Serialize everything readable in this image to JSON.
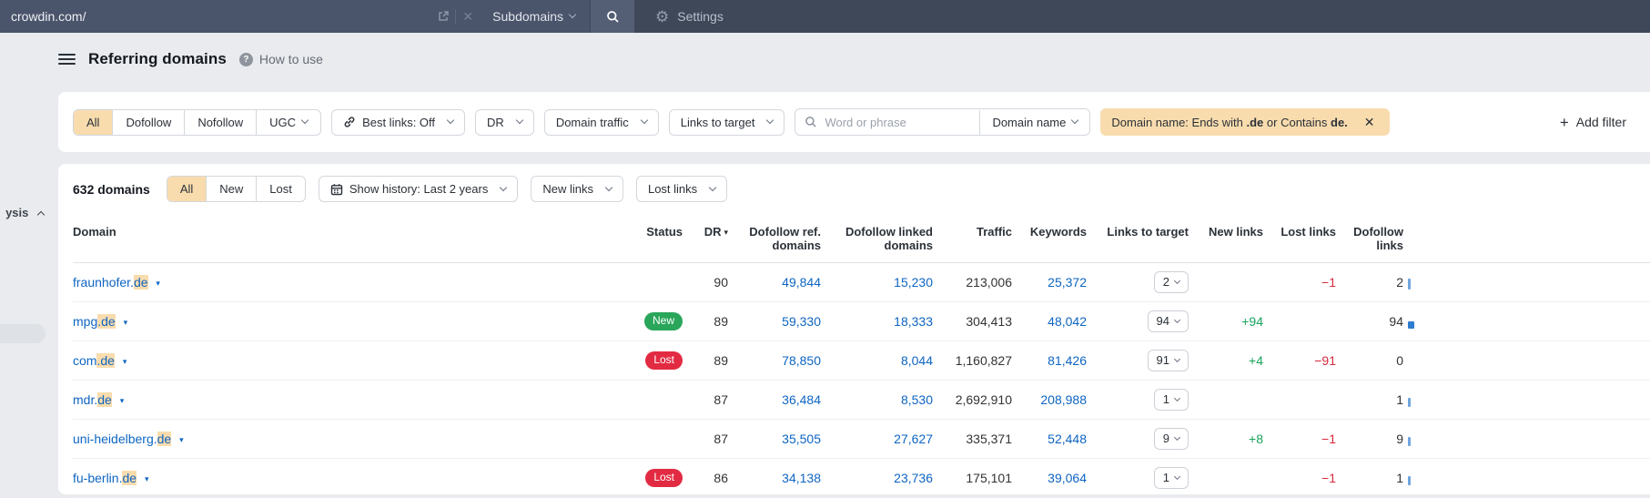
{
  "topbar": {
    "url": "crowdin.com/",
    "mode": "Subdomains",
    "settings": "Settings"
  },
  "icons": {
    "close": "✕",
    "gear": "⚙",
    "help": "?",
    "plus": "+",
    "sort_desc": "▾",
    "domain_caret": "▾"
  },
  "sidebar": {
    "cut_item": "ysis"
  },
  "page": {
    "title": "Referring domains",
    "help": "How to use"
  },
  "filterbar": {
    "segments": [
      {
        "label": "All",
        "active": true
      },
      {
        "label": "Dofollow",
        "active": false
      },
      {
        "label": "Nofollow",
        "active": false
      },
      {
        "label": "UGC",
        "active": false,
        "caret": true
      }
    ],
    "best_links": "Best links: Off",
    "dr": "DR",
    "domain_traffic": "Domain traffic",
    "links_to_target": "Links to target",
    "search_placeholder": "Word or phrase",
    "search_mode": "Domain name",
    "chip_parts": [
      "Domain name: Ends with ",
      ".de",
      " or Contains ",
      "de."
    ],
    "add_filter": "Add filter"
  },
  "toolbar": {
    "count": "632 domains",
    "segments": [
      {
        "label": "All",
        "active": true
      },
      {
        "label": "New",
        "active": false
      },
      {
        "label": "Lost",
        "active": false
      }
    ],
    "show_history": "Show history: Last 2 years",
    "new_links": "New links",
    "lost_links": "Lost links"
  },
  "table": {
    "columns": [
      "Domain",
      "Status",
      "DR",
      "Dofollow ref. domains",
      "Dofollow linked domains",
      "Traffic",
      "Keywords",
      "Links to target",
      "New links",
      "Lost links",
      "Dofollow links"
    ],
    "rows": [
      {
        "domain_prefix": "fraunhofer.",
        "domain_match": "de",
        "status": "",
        "dr": "90",
        "dofollow_ref": "49,844",
        "dofollow_linked": "15,230",
        "traffic": "213,006",
        "keywords": "25,372",
        "links_select": "2",
        "new": "",
        "lost": "−1",
        "dofollow_links": "2",
        "spark": {
          "w": 3,
          "h": 12,
          "c": "#6ea5de"
        }
      },
      {
        "domain_prefix": "mpg",
        "domain_match": ".de",
        "status": "New",
        "dr": "89",
        "dofollow_ref": "59,330",
        "dofollow_linked": "18,333",
        "traffic": "304,413",
        "keywords": "48,042",
        "links_select": "94",
        "new": "+94",
        "lost": "",
        "dofollow_links": "94",
        "spark": {
          "w": 7,
          "h": 8,
          "c": "#2e7cd0"
        }
      },
      {
        "domain_prefix": "com",
        "domain_match": ".de",
        "status": "Lost",
        "dr": "89",
        "dofollow_ref": "78,850",
        "dofollow_linked": "8,044",
        "traffic": "1,160,827",
        "keywords": "81,426",
        "links_select": "91",
        "new": "+4",
        "lost": "−91",
        "dofollow_links": "0",
        "spark": null
      },
      {
        "domain_prefix": "mdr.",
        "domain_match": "de",
        "status": "",
        "dr": "87",
        "dofollow_ref": "36,484",
        "dofollow_linked": "8,530",
        "traffic": "2,692,910",
        "keywords": "208,988",
        "links_select": "1",
        "new": "",
        "lost": "",
        "dofollow_links": "1",
        "spark": {
          "w": 3,
          "h": 10,
          "c": "#6ea5de"
        }
      },
      {
        "domain_prefix": "uni-heidelberg.",
        "domain_match": "de",
        "status": "",
        "dr": "87",
        "dofollow_ref": "35,505",
        "dofollow_linked": "27,627",
        "traffic": "335,371",
        "keywords": "52,448",
        "links_select": "9",
        "new": "+8",
        "lost": "−1",
        "dofollow_links": "9",
        "spark": {
          "w": 3,
          "h": 10,
          "c": "#6ea5de"
        }
      },
      {
        "domain_prefix": "fu-berlin.",
        "domain_match": "de",
        "status": "Lost",
        "dr": "86",
        "dofollow_ref": "34,138",
        "dofollow_linked": "23,736",
        "traffic": "175,101",
        "keywords": "39,064",
        "links_select": "1",
        "new": "",
        "lost": "−1",
        "dofollow_links": "1",
        "spark": {
          "w": 3,
          "h": 10,
          "c": "#6ea5de"
        }
      }
    ]
  },
  "colors": {
    "accent_peach": "#f9dcae",
    "link_blue": "#0e65c2",
    "badge_new": "#2aa65b",
    "badge_lost": "#e22b42",
    "positive": "#17a35b",
    "negative": "#d6293e"
  }
}
